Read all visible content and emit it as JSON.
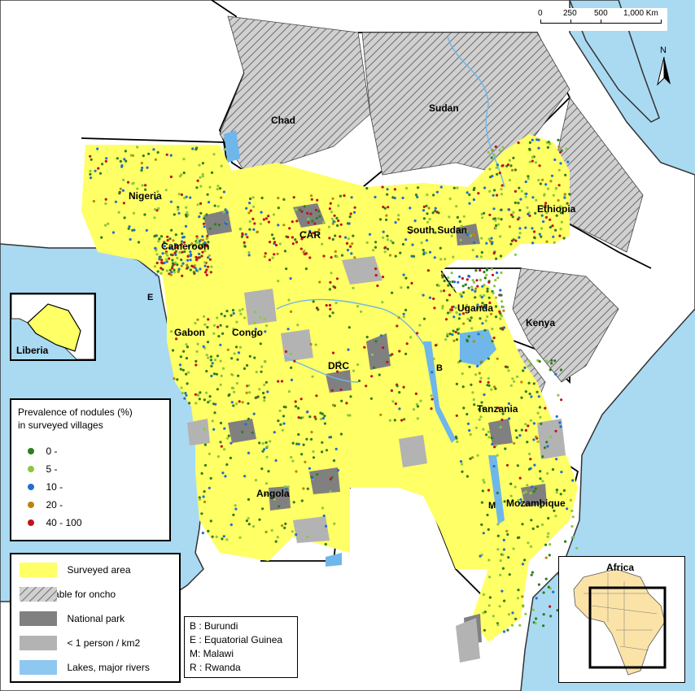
{
  "scale_bar": {
    "ticks": [
      "0",
      "250",
      "500",
      "1,000 Km"
    ]
  },
  "north_arrow": {
    "label": "N"
  },
  "countries": [
    {
      "key": "chad",
      "name": "Chad"
    },
    {
      "key": "sudan",
      "name": "Sudan"
    },
    {
      "key": "nigeria",
      "name": "Nigeria"
    },
    {
      "key": "cameroon",
      "name": "Cameroon"
    },
    {
      "key": "car",
      "name": "CAR"
    },
    {
      "key": "south_sudan",
      "name": "South Sudan"
    },
    {
      "key": "ethiopia",
      "name": "Ethiopia"
    },
    {
      "key": "uganda",
      "name": "Uganda"
    },
    {
      "key": "kenya",
      "name": "Kenya"
    },
    {
      "key": "gabon",
      "name": "Gabon"
    },
    {
      "key": "congo",
      "name": "Congo"
    },
    {
      "key": "drc",
      "name": "DRC"
    },
    {
      "key": "tanzania",
      "name": "Tanzania"
    },
    {
      "key": "angola",
      "name": "Angola"
    },
    {
      "key": "mozambique",
      "name": "Mozambique"
    },
    {
      "key": "e",
      "name": "E"
    },
    {
      "key": "b",
      "name": "B"
    },
    {
      "key": "m",
      "name": "M"
    }
  ],
  "inset_liberia": {
    "label": "Liberia"
  },
  "inset_africa": {
    "label": "Africa"
  },
  "prevalence_legend": {
    "title_line1": "Prevalence of nodules (%)",
    "title_line2": "in surveyed villages",
    "classes": [
      {
        "label": "0 -",
        "color": "#2e7d1e"
      },
      {
        "label": "5 -",
        "color": "#8cc63f"
      },
      {
        "label": "10 -",
        "color": "#1f6fd1"
      },
      {
        "label": "20 -",
        "color": "#b8860b"
      },
      {
        "label": "40 - 100",
        "color": "#c0141c"
      }
    ]
  },
  "area_legend": {
    "items": [
      {
        "label": "Surveyed area",
        "style": "yellow",
        "color": "#ffff66"
      },
      {
        "label": "Unsuitable for oncho",
        "style": "hatch",
        "color": "#d0d0d0"
      },
      {
        "label": "National park",
        "style": "dark",
        "color": "#808080"
      },
      {
        "label": "< 1 person / km2",
        "style": "light",
        "color": "#b3b3b3"
      },
      {
        "label": "Lakes, major rivers",
        "style": "water",
        "color": "#8ec7f0"
      }
    ]
  },
  "abbrev_legend": {
    "items": [
      "B : Burundi",
      "E : Equatorial Guinea",
      "M: Malawi",
      "R : Rwanda"
    ]
  },
  "colors": {
    "ocean": "#a9daf2",
    "land": "#ffffff",
    "surveyed": "#ffff66",
    "unsuitable": "#d0d0d0",
    "water": "#6fb6ea"
  }
}
